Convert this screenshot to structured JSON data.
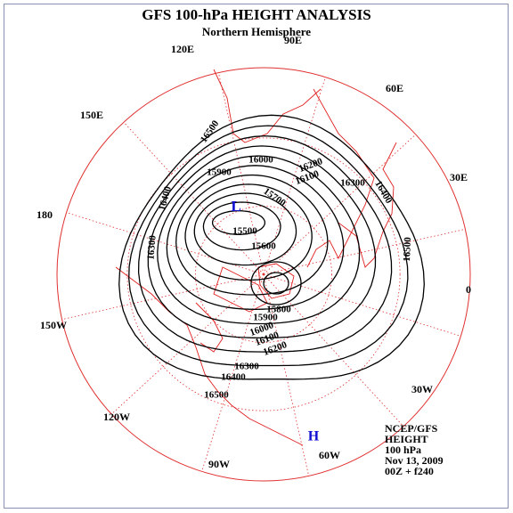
{
  "header": {
    "title": "GFS 100-hPa HEIGHT ANALYSIS",
    "subtitle": "Northern Hemisphere"
  },
  "longitude_labels": [
    "90E",
    "120E",
    "60E",
    "150E",
    "30E",
    "180",
    "0",
    "150W",
    "30W",
    "120W",
    "90W",
    "60W"
  ],
  "contour_labels": [
    16500,
    16000,
    16200,
    16100,
    16300,
    15900,
    16400,
    15700,
    16400,
    15500,
    15600,
    16300,
    16500,
    15800,
    15900,
    16000,
    16100,
    16200,
    16300,
    16400,
    16500
  ],
  "centers": {
    "low": "L",
    "high": "H"
  },
  "info": [
    "NCEP/GFS",
    "HEIGHT",
    "100 hPa",
    "Nov 13, 2009",
    "00Z + f240"
  ]
}
